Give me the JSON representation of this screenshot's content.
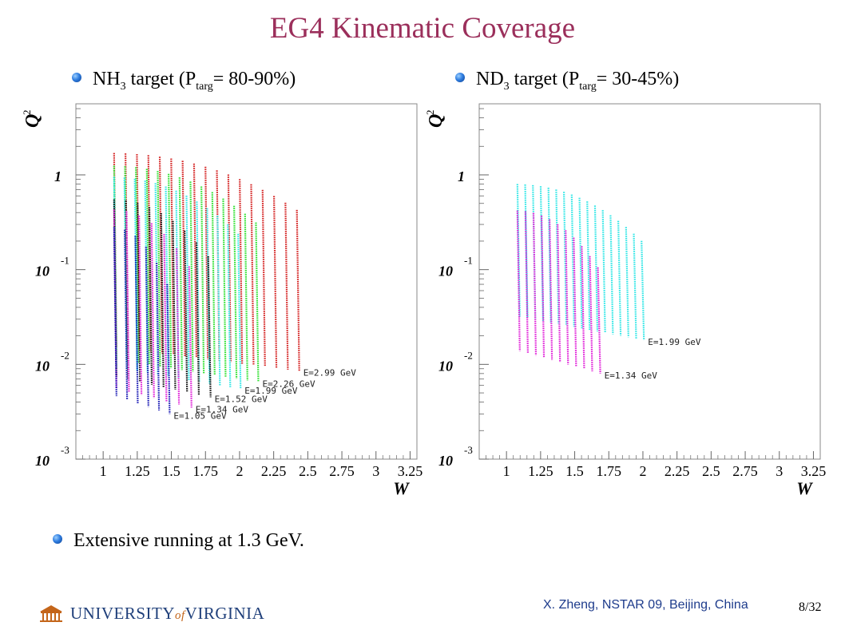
{
  "title": "EG4 Kinematic Coverage",
  "bullets": {
    "nh3": {
      "pre": "NH",
      "sub1": "3",
      "mid": " target (P",
      "sub2": "targ",
      "post": "= 80-90%)"
    },
    "nd3": {
      "pre": "ND",
      "sub1": "3",
      "mid": " target (P",
      "sub2": "targ",
      "post": "= 30-45%)"
    },
    "running": "Extensive running at 1.3 GeV."
  },
  "footer": {
    "author": "X. Zheng, NSTAR 09, Beijing, China",
    "page": "8/32",
    "logo_main": "UNIVERSITY",
    "logo_of": "of",
    "logo_end": "VIRGINIA"
  },
  "colors": {
    "title": "#9b2f5b",
    "E1.05": "#1a1ab4",
    "E1.34": "#e020d8",
    "E1.52": "#111111",
    "E1.99": "#30e6e6",
    "E2.26": "#2ee02e",
    "E2.99": "#d42020"
  },
  "chart_data": [
    {
      "type": "scatter",
      "title": "",
      "xlabel": "W",
      "ylabel": "Q2",
      "xlim": [
        0.8,
        3.3
      ],
      "ylim_log10": [
        -3,
        0.75
      ],
      "yscale": "log",
      "x_ticks": [
        "1",
        "1.25",
        "1.5",
        "1.75",
        "2",
        "2.25",
        "2.5",
        "2.75",
        "3",
        "3.25"
      ],
      "y_ticks": [
        {
          "base": "10",
          "exp": "-3",
          "value": 0.001
        },
        {
          "base": "10",
          "exp": "-2",
          "value": 0.01
        },
        {
          "base": "10",
          "exp": "-1",
          "value": 0.1
        },
        {
          "base": "1",
          "exp": "",
          "value": 1
        }
      ],
      "series": [
        {
          "name": "E=2.99 GeV",
          "color": "#d42020",
          "w_end": 2.42,
          "q2_top": 1.7,
          "q2_bottom": 0.0085,
          "n": 17
        },
        {
          "name": "E=2.26 GeV",
          "color": "#2ee02e",
          "w_end": 2.12,
          "q2_top": 1.25,
          "q2_bottom": 0.0065,
          "n": 14
        },
        {
          "name": "E=1.99 GeV",
          "color": "#30e6e6",
          "w_end": 1.99,
          "q2_top": 0.95,
          "q2_bottom": 0.0055,
          "n": 13
        },
        {
          "name": "E=1.52 GeV",
          "color": "#111111",
          "w_end": 1.77,
          "q2_top": 0.55,
          "q2_bottom": 0.0045,
          "n": 9
        },
        {
          "name": "E=1.34 GeV",
          "color": "#e020d8",
          "w_end": 1.63,
          "q2_top": 0.43,
          "q2_bottom": 0.0035,
          "n": 7
        },
        {
          "name": "E=1.05 GeV",
          "color": "#1a1ab4",
          "w_end": 1.47,
          "q2_top": 0.28,
          "q2_bottom": 0.003,
          "n": 6
        }
      ]
    },
    {
      "type": "scatter",
      "title": "",
      "xlabel": "W",
      "ylabel": "Q2",
      "xlim": [
        0.8,
        3.3
      ],
      "ylim_log10": [
        -3,
        0.75
      ],
      "yscale": "log",
      "x_ticks": [
        "1",
        "1.25",
        "1.5",
        "1.75",
        "2",
        "2.25",
        "2.5",
        "2.75",
        "3",
        "3.25"
      ],
      "y_ticks": [
        {
          "base": "10",
          "exp": "-3",
          "value": 0.001
        },
        {
          "base": "10",
          "exp": "-2",
          "value": 0.01
        },
        {
          "base": "10",
          "exp": "-1",
          "value": 0.1
        },
        {
          "base": "1",
          "exp": "",
          "value": 1
        }
      ],
      "series": [
        {
          "name": "E=1.99 GeV",
          "color": "#30e6e6",
          "w_end": 1.99,
          "q2_top": 0.8,
          "q2_bottom": 0.018,
          "n": 17
        },
        {
          "name": "E=1.34 GeV",
          "color": "#e020d8",
          "w_end": 1.67,
          "q2_top": 0.42,
          "q2_bottom": 0.008,
          "n": 11
        }
      ]
    }
  ]
}
